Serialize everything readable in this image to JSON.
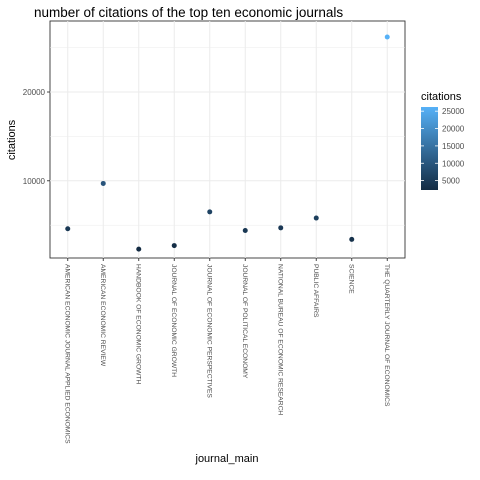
{
  "chart_data": {
    "type": "scatter",
    "title": "number of citations of the top ten economic journals",
    "xlabel": "journal_main",
    "ylabel": "citations",
    "categories": [
      "AMERICAN ECONOMIC JOURNAL APPLIED ECONOMICS",
      "AMERICAN ECONOMIC REVIEW",
      "HANDBOOK OF ECONOMIC GROWTH",
      "JOURNAL OF ECONOMIC GROWTH",
      "JOURNAL OF ECONOMIC PERSPECTIVES",
      "JOURNAL OF POLITICAL ECONOMY",
      "NATIONAL BUREAU OF ECONOMIC RESEARCH",
      "PUBLIC AFFAIRS",
      "SCIENCE",
      "THE QUARTERLY JOURNAL OF ECONOMICS"
    ],
    "values": [
      4600,
      9700,
      2300,
      2700,
      6500,
      4400,
      4700,
      5800,
      3400,
      26200
    ],
    "ylim": [
      1300,
      28000
    ],
    "yticks": [
      10000,
      20000
    ],
    "ytick_labels": [
      "10000",
      "20000"
    ],
    "grid": true,
    "color_scale": {
      "title": "citations",
      "min": 2300,
      "max": 26200,
      "low_color": "#132B43",
      "high_color": "#56B1F7",
      "breaks": [
        5000,
        10000,
        15000,
        20000,
        25000
      ],
      "break_labels": [
        "5000",
        "10000",
        "15000",
        "20000",
        "25000"
      ]
    },
    "legend_position": "right"
  }
}
